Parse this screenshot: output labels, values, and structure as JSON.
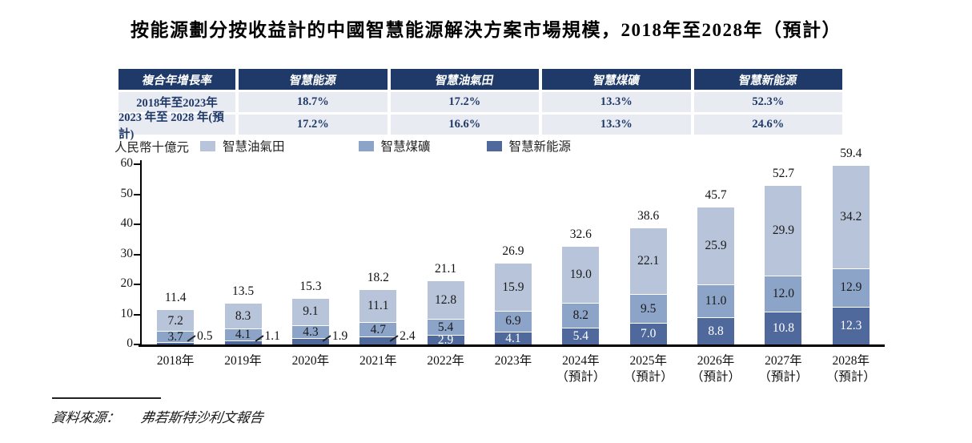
{
  "title": "按能源劃分按收益計的中國智慧能源解決方案市場規模，2018年至2028年（預計）",
  "cagr_table": {
    "header": [
      "複合年增長率",
      "智慧能源",
      "智慧油氣田",
      "智慧煤礦",
      "智慧新能源"
    ],
    "rows": [
      {
        "label": "2018年至2023年",
        "values": [
          "18.7%",
          "17.2%",
          "13.3%",
          "52.3%"
        ]
      },
      {
        "label": "2023 年至 2028 年(預計)",
        "values": [
          "17.2%",
          "16.6%",
          "13.3%",
          "24.6%"
        ]
      }
    ]
  },
  "unit_label": "人民幣十億元",
  "source": {
    "prefix": "資料來源：",
    "text": "弗若斯特沙利文報告"
  },
  "colors": {
    "table_header_bg": "#1f3a68",
    "table_row_bg": "#e9ebf3",
    "table_text": "#1f3a68",
    "bar_light": "#b7c4da",
    "bar_medium": "#8ca4c8",
    "bar_dark": "#4f699c"
  },
  "chart_data": {
    "type": "bar",
    "stacked": true,
    "title": "按能源劃分按收益計的中國智慧能源解決方案市場規模，2018年至2028年（預計）",
    "ylabel": "人民幣十億元",
    "ylim": [
      0,
      60
    ],
    "yticks": [
      0,
      10,
      20,
      30,
      40,
      50,
      60
    ],
    "grid": false,
    "legend_position": "top",
    "categories": [
      {
        "label": "2018年",
        "sub": ""
      },
      {
        "label": "2019年",
        "sub": ""
      },
      {
        "label": "2020年",
        "sub": ""
      },
      {
        "label": "2021年",
        "sub": ""
      },
      {
        "label": "2022年",
        "sub": ""
      },
      {
        "label": "2023年",
        "sub": ""
      },
      {
        "label": "2024年",
        "sub": "（預計）"
      },
      {
        "label": "2025年",
        "sub": "（預計）"
      },
      {
        "label": "2026年",
        "sub": "（預計）"
      },
      {
        "label": "2027年",
        "sub": "（預計）"
      },
      {
        "label": "2028年",
        "sub": "（預計）"
      }
    ],
    "series": [
      {
        "name": "智慧新能源",
        "color": "#4f699c",
        "values": [
          0.5,
          1.1,
          1.9,
          2.4,
          2.9,
          4.1,
          5.4,
          7.0,
          8.8,
          10.8,
          12.3
        ]
      },
      {
        "name": "智慧煤礦",
        "color": "#8ca4c8",
        "values": [
          3.7,
          4.1,
          4.3,
          4.7,
          5.4,
          6.9,
          8.2,
          9.5,
          11.0,
          12.0,
          12.9
        ]
      },
      {
        "name": "智慧油氣田",
        "color": "#b7c4da",
        "values": [
          7.2,
          8.3,
          9.1,
          11.1,
          12.8,
          15.9,
          19.0,
          22.1,
          25.9,
          29.9,
          34.2
        ]
      }
    ],
    "totals": [
      11.4,
      13.5,
      15.3,
      18.2,
      21.1,
      26.9,
      32.6,
      38.6,
      45.7,
      52.7,
      59.4
    ]
  }
}
